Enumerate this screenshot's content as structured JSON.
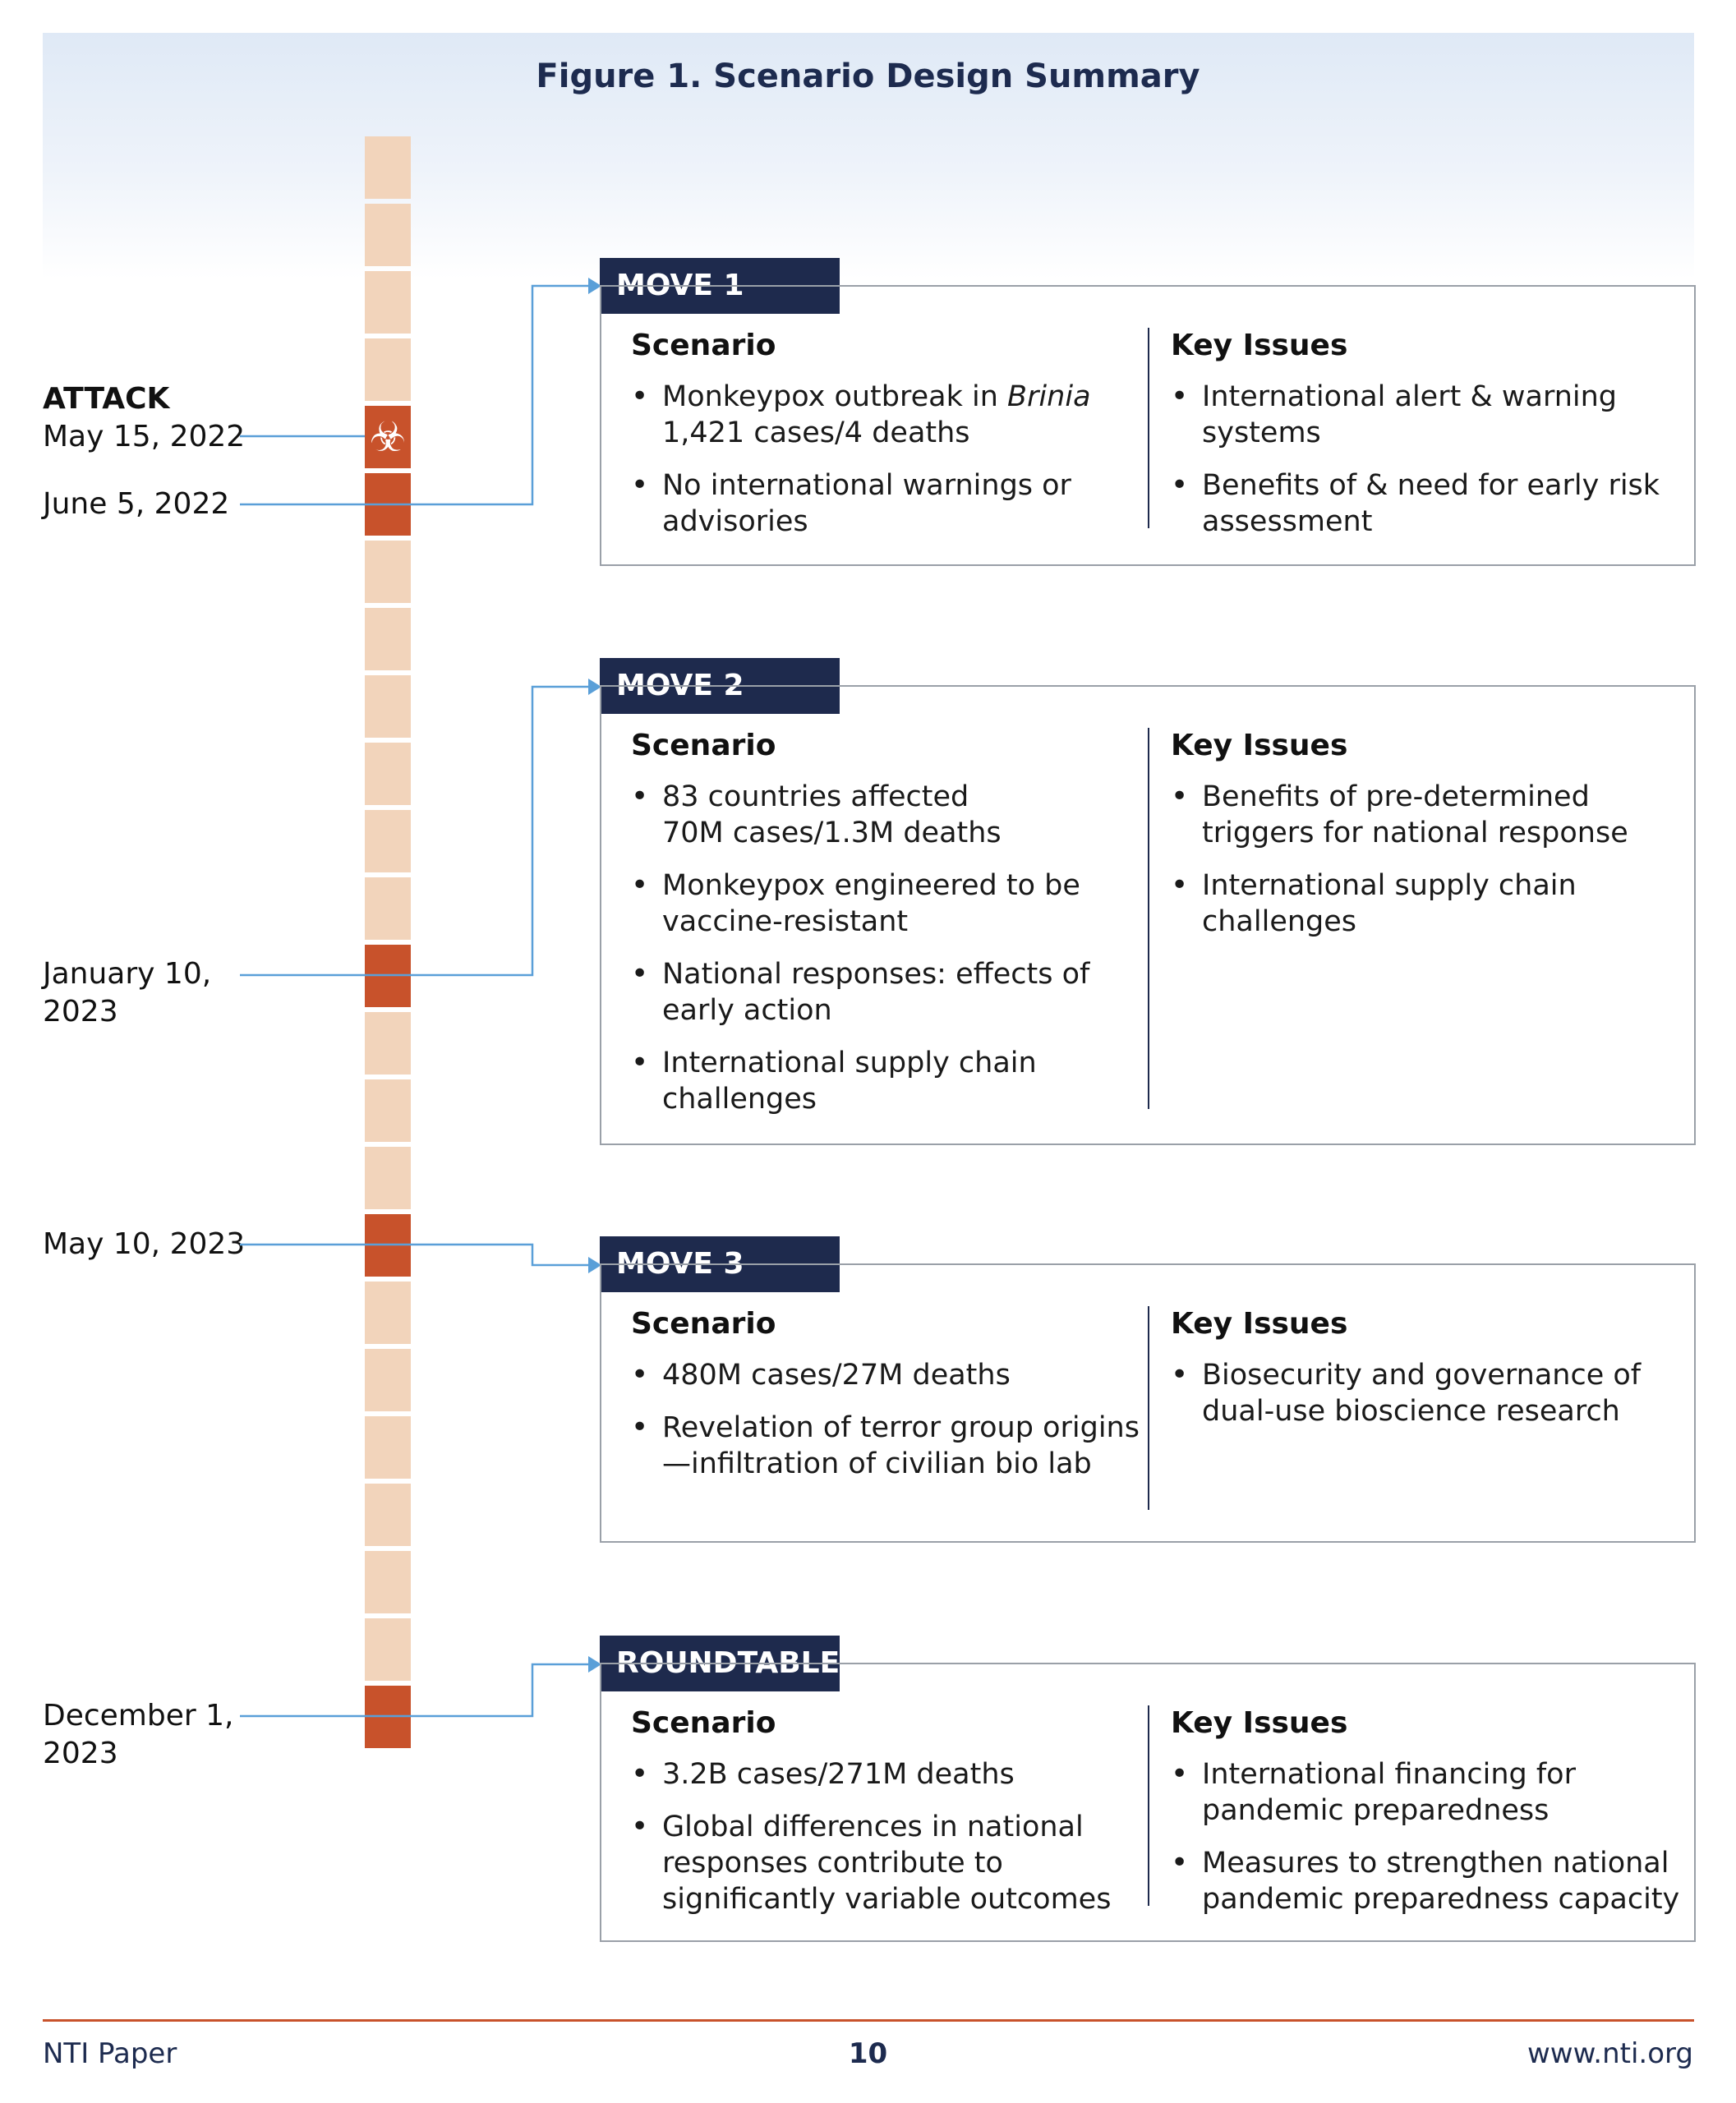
{
  "figure_title": "Figure 1. Scenario Design Summary",
  "dates": {
    "attack_label": "ATTACK",
    "attack_date": "May 15, 2022",
    "d1": "June 5, 2022",
    "d2_line1": "January 10,",
    "d2_line2": "2023",
    "d3": "May 10, 2023",
    "d4_line1": "December 1,",
    "d4_line2": "2023"
  },
  "moves": [
    {
      "title": "MOVE 1",
      "scenario_heading": "Scenario",
      "issues_heading": "Key Issues",
      "scenario": {
        "b1_prefix": "Monkeypox outbreak in ",
        "b1_italic": "Brinia",
        "b1_line2": "1,421 cases/4 deaths",
        "b2": "No international warnings or advisories"
      },
      "issues": [
        "International alert & warning systems",
        "Benefits of & need for early risk assessment"
      ]
    },
    {
      "title": "MOVE 2",
      "scenario_heading": "Scenario",
      "issues_heading": "Key Issues",
      "scenario": {
        "b1_line1": "83 countries affected",
        "b1_line2": "70M cases/1.3M deaths",
        "b2": "Monkeypox engineered to be vaccine-resistant",
        "b3": "National responses: effects of early action",
        "b4": "International supply chain challenges"
      },
      "issues": [
        "Benefits of pre-determined triggers for national response",
        "International supply chain challenges"
      ]
    },
    {
      "title": "MOVE 3",
      "scenario_heading": "Scenario",
      "issues_heading": "Key Issues",
      "scenario": {
        "b1": "480M cases/27M deaths",
        "b2": "Revelation of terror group origins—infiltration of civilian bio lab"
      },
      "issues": [
        "Biosecurity and governance of dual-use bioscience research"
      ]
    },
    {
      "title": "ROUNDTABLE",
      "scenario_heading": "Scenario",
      "issues_heading": "Key Issues",
      "scenario": {
        "b1": "3.2B cases/271M deaths",
        "b2": "Global differences in national responses contribute to significantly variable outcomes"
      },
      "issues": [
        "International financing for pandemic preparedness",
        "Measures to strengthen national pandemic preparedness capacity"
      ]
    }
  ],
  "footer": {
    "left": "NTI Paper",
    "page": "10",
    "right": "www.nti.org"
  },
  "colors": {
    "navy": "#1e2a4d",
    "timeline_inactive": "#f2d4bb",
    "timeline_active": "#c8522b",
    "connector": "#5a9fd8"
  },
  "icons": {
    "attack_marker": "biohazard-icon"
  }
}
